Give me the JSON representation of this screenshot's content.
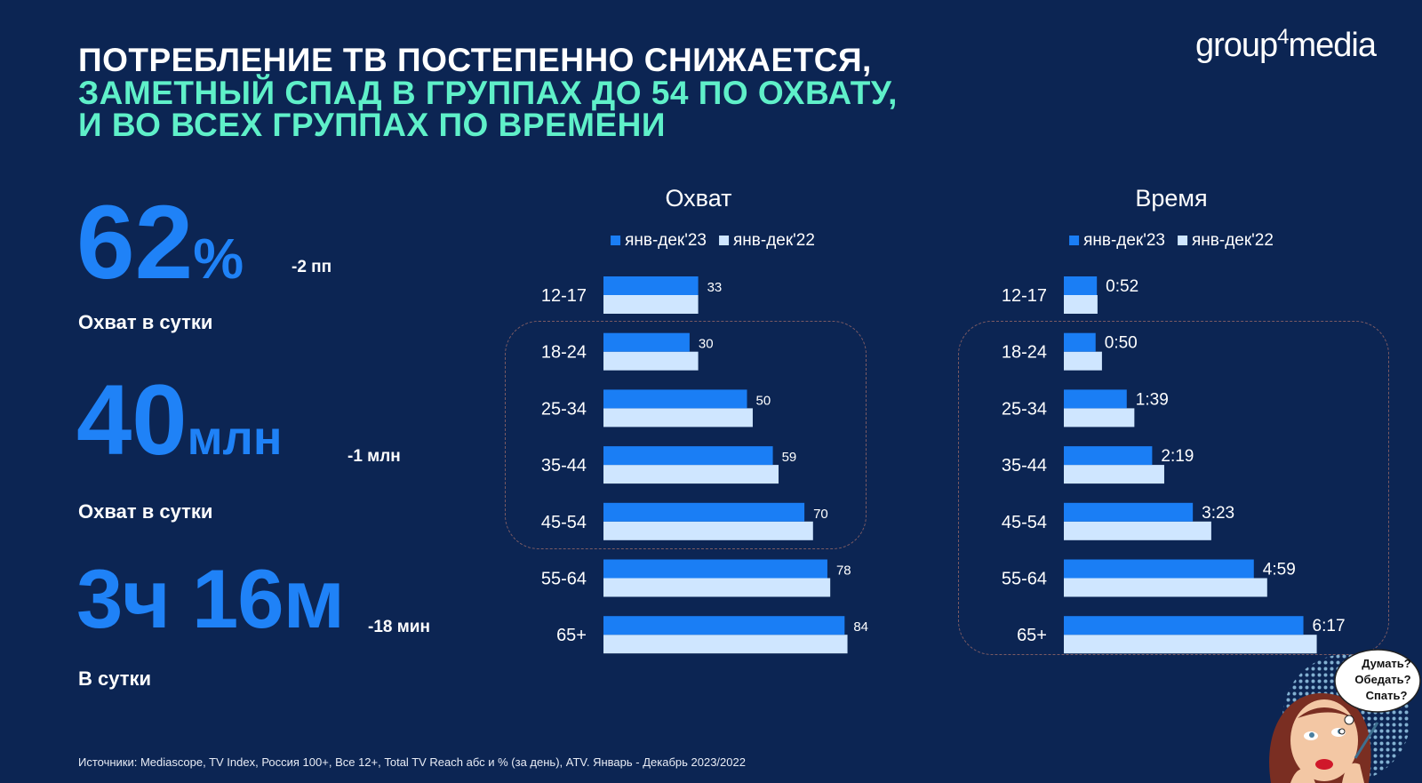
{
  "header": {
    "title_line1": "ПОТРЕБЛЕНИЕ ТВ ПОСТЕПЕННО СНИЖАЕТСЯ,",
    "title_line2": "ЗАМЕТНЫЙ СПАД В ГРУППАХ ДО 54 ПО ОХВАТУ,",
    "title_line3": "И ВО ВСЕХ ГРУППАХ ПО ВРЕМЕНИ",
    "logo_main": "group",
    "logo_num": "4",
    "logo_end": "media"
  },
  "kpis": [
    {
      "value": "62",
      "unit": "%",
      "delta": "-2 пп",
      "label": "Охват в сутки"
    },
    {
      "value": "40",
      "unit": "млн",
      "delta": "-1 млн",
      "label": "Охват в сутки"
    },
    {
      "value": "3ч 16м",
      "unit": "",
      "delta": "-18 мин",
      "label": "В сутки"
    }
  ],
  "colors": {
    "bg": "#0c2553",
    "series_2023": "#1a7ef5",
    "series_2022": "#cfe6ff",
    "accent": "#5ff0c9"
  },
  "chart_data": [
    {
      "type": "bar",
      "orientation": "horizontal",
      "title": "Охват",
      "categories": [
        "12-17",
        "18-24",
        "25-34",
        "35-44",
        "45-54",
        "55-64",
        "65+"
      ],
      "series": [
        {
          "name": "янв-дек'23",
          "values": [
            33,
            30,
            50,
            59,
            70,
            78,
            84
          ],
          "labels": [
            "33",
            "30",
            "50",
            "59",
            "70",
            "78",
            "84"
          ]
        },
        {
          "name": "янв-дек'22",
          "values": [
            33,
            33,
            52,
            61,
            73,
            79,
            85
          ]
        }
      ],
      "highlight_categories": [
        "18-24",
        "25-34",
        "35-44",
        "45-54"
      ],
      "legend": "top"
    },
    {
      "type": "bar",
      "orientation": "horizontal",
      "title": "Время",
      "categories": [
        "12-17",
        "18-24",
        "25-34",
        "35-44",
        "45-54",
        "55-64",
        "65+"
      ],
      "unit": "minutes",
      "series": [
        {
          "name": "янв-дек'23",
          "values": [
            52,
            50,
            99,
            139,
            203,
            299,
            377
          ],
          "labels": [
            "0:52",
            "0:50",
            "1:39",
            "2:19",
            "3:23",
            "4:59",
            "6:17"
          ]
        },
        {
          "name": "янв-дек'22",
          "values": [
            53,
            60,
            111,
            158,
            232,
            320,
            398
          ]
        }
      ],
      "highlight_categories": [
        "18-24",
        "25-34",
        "35-44",
        "45-54",
        "55-64",
        "65+"
      ],
      "legend": "top"
    }
  ],
  "cartoon": {
    "bubble": [
      "Думать?",
      "Обедать?",
      "Спать?"
    ]
  },
  "footer": {
    "source": "Источники: Mediascope, TV Index, Россия 100+, Все 12+, Total TV Reach абс и % (за день), ATV. Январь - Декабрь 2023/2022"
  }
}
